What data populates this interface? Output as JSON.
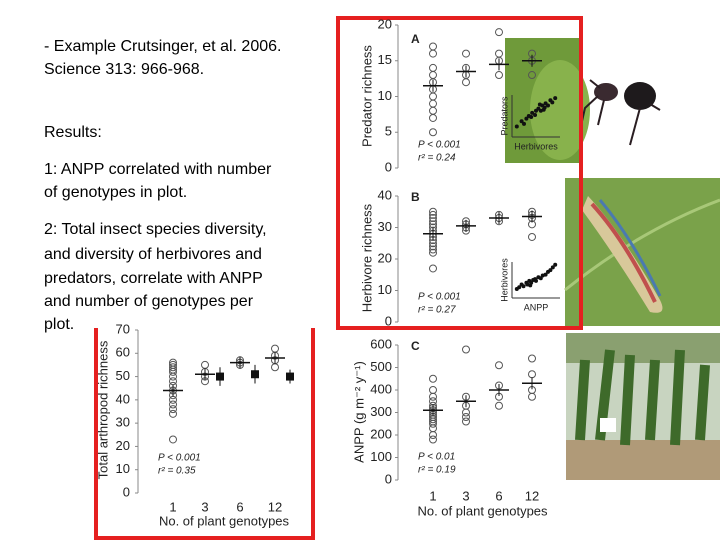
{
  "slide": {
    "lines": [
      "- Example Crutsinger, et al. 2006.",
      "Science 313: 966-968.",
      "Results:",
      "1: ANPP correlated with number",
      "of genotypes in plot.",
      "2: Total insect species diversity,",
      "and diversity of herbivores and",
      "predators, correlate with ANPP",
      "and number of genotypes per",
      "plot."
    ]
  },
  "chart_data": [
    {
      "type": "dot",
      "panel": "A",
      "ylabel": "Predator richness",
      "ylim": [
        0,
        20
      ],
      "yticks": [
        0,
        5,
        10,
        15,
        20
      ],
      "groups": [
        [
          17,
          16,
          14,
          13,
          12,
          11,
          10,
          9,
          8,
          7,
          5
        ],
        [
          16,
          14,
          13,
          12
        ],
        [
          19,
          16,
          15,
          13
        ],
        [
          16,
          15,
          13
        ]
      ],
      "means": [
        11.5,
        13.5,
        14.5,
        15
      ],
      "stat_p": "P < 0.001",
      "stat_r2": "r² = 0.24",
      "inset": {
        "xlabel": "Herbivores",
        "ylabel": "Predators",
        "x": [
          1,
          2,
          2.5,
          3,
          3.5,
          4,
          4.2,
          4.8,
          5,
          5.5,
          6,
          6.3,
          6.8,
          7,
          7.5,
          8,
          8.4,
          9,
          5.8,
          6.6
        ],
        "y": [
          2,
          3,
          2.5,
          3.5,
          4,
          3.8,
          4.6,
          4.2,
          5,
          5.4,
          5,
          6,
          5.6,
          6.4,
          6,
          7,
          6.6,
          7.4,
          6.2,
          5.2
        ]
      }
    },
    {
      "type": "dot",
      "panel": "B",
      "ylabel": "Herbivore richness",
      "ylim": [
        0,
        40
      ],
      "yticks": [
        0,
        10,
        20,
        30,
        40
      ],
      "groups": [
        [
          35,
          34,
          33,
          32,
          31,
          30,
          29,
          28,
          27,
          26,
          25,
          24,
          23,
          22,
          17
        ],
        [
          32,
          31,
          30,
          29
        ],
        [
          34,
          33,
          32
        ],
        [
          35,
          34,
          33,
          31,
          27
        ]
      ],
      "means": [
        28,
        30.5,
        33,
        33.5
      ],
      "stat_p": "P < 0.001",
      "stat_r2": "r² = 0.27",
      "inset": {
        "xlabel": "ANPP",
        "ylabel": "Herbivores",
        "x": [
          1,
          1.5,
          2,
          2.4,
          3,
          3.2,
          3.6,
          4,
          4.4,
          4.8,
          5,
          5.5,
          6,
          6.4,
          7,
          7.5,
          8,
          8.5,
          9,
          3.8
        ],
        "y": [
          2,
          2.4,
          3,
          2.6,
          3.4,
          3,
          3.8,
          3.4,
          4,
          4.2,
          3.8,
          4.6,
          4.4,
          5,
          5.2,
          5.8,
          6.2,
          6.8,
          7.4,
          2.8
        ]
      }
    },
    {
      "type": "dot",
      "panel": "C",
      "ylabel": "ANPP (g m⁻² y⁻¹)",
      "xlabel": "No. of plant genotypes",
      "categories": [
        "1",
        "3",
        "6",
        "12"
      ],
      "ylim": [
        0,
        600
      ],
      "yticks": [
        0,
        100,
        200,
        300,
        400,
        500,
        600
      ],
      "groups": [
        [
          450,
          400,
          370,
          350,
          330,
          320,
          310,
          300,
          290,
          280,
          270,
          260,
          250,
          230,
          200,
          180
        ],
        [
          580,
          370,
          330,
          300,
          280,
          260
        ],
        [
          510,
          420,
          370,
          330
        ],
        [
          540,
          470,
          400,
          370
        ]
      ],
      "means": [
        310,
        350,
        400,
        430
      ],
      "stat_p": "P < 0.01",
      "stat_r2": "r² = 0.19"
    },
    {
      "type": "dot",
      "ylabel": "Total arthropod richness",
      "xlabel": "No. of plant genotypes",
      "categories": [
        "1",
        "3",
        "6",
        "12"
      ],
      "ylim": [
        0,
        70
      ],
      "yticks": [
        0,
        10,
        20,
        30,
        40,
        50,
        60,
        70
      ],
      "groups": [
        [
          56,
          55,
          54,
          53,
          52,
          50,
          48,
          46,
          44,
          42,
          40,
          38,
          36,
          34,
          23
        ],
        [
          55,
          52,
          50,
          48
        ],
        [
          57,
          56,
          55
        ],
        [
          62,
          59,
          57,
          54
        ]
      ],
      "means": [
        44,
        51,
        56,
        58
      ],
      "squares": [
        null,
        50,
        51,
        50
      ],
      "square_errors": [
        null,
        4,
        4,
        3
      ],
      "stat_p": "P < 0.001",
      "stat_r2": "r² = 0.35"
    }
  ]
}
